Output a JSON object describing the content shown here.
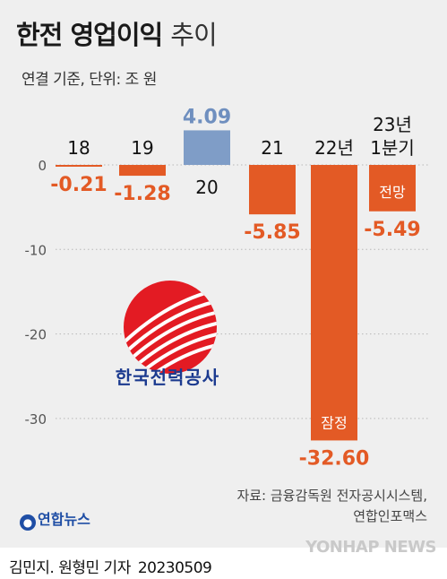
{
  "header": {
    "title_bold": "한전 영업이익",
    "title_light": "추이",
    "subtitle": "연결 기준, 단위: 조 원"
  },
  "chart_data": {
    "type": "bar",
    "title": "한전 영업이익 추이",
    "subtitle": "연결 기준, 단위: 조 원",
    "categories": [
      "18",
      "19",
      "20",
      "21",
      "22년",
      "23년 1분기"
    ],
    "category_lines": [
      [
        "18"
      ],
      [
        "19"
      ],
      [
        "20"
      ],
      [
        "21"
      ],
      [
        "22년"
      ],
      [
        "23년",
        "1분기"
      ]
    ],
    "values": [
      -0.21,
      -1.28,
      4.09,
      -5.85,
      -32.6,
      -5.49
    ],
    "value_labels": [
      "-0.21",
      "-1.28",
      "4.09",
      "-5.85",
      "-32.60",
      "-5.49"
    ],
    "bar_notes": [
      "",
      "",
      "",
      "",
      "잠정",
      "전망"
    ],
    "y_ticks": [
      0,
      -10,
      -20,
      -30
    ],
    "y_tick_labels": [
      "0",
      "-10",
      "-20",
      "-30"
    ],
    "ylim": [
      -35,
      6
    ],
    "grid": true,
    "colors": {
      "negative": "#e35a25",
      "positive": "#7f9dc7",
      "negative_label": "#e35a25",
      "positive_label": "#6f8fbf"
    }
  },
  "logo": {
    "text": "한국전력공사",
    "icon": "kepco-logo-icon"
  },
  "source": {
    "line1": "자료: 금융감독원 전자공시시스템,",
    "line2": "연합인포맥스"
  },
  "brand": {
    "yna_logo": "연합뉴스",
    "watermark": "YONHAP NEWS"
  },
  "footer": {
    "byline": "김민지. 원형민 기자",
    "date": "20230509"
  }
}
